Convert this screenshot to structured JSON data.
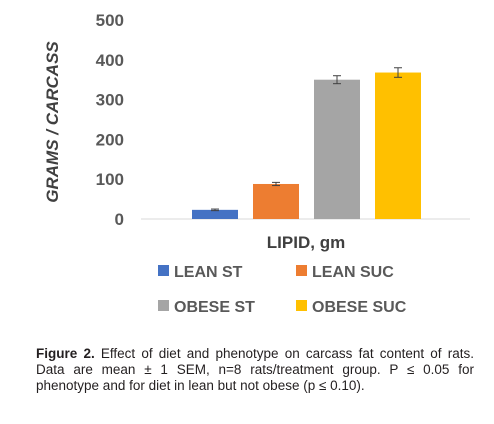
{
  "chart_data": {
    "type": "bar",
    "ylabel": "GRAMS / CARCASS",
    "xlabel": "LIPID, gm",
    "ylim": [
      0,
      500
    ],
    "yticks": [
      0,
      100,
      200,
      300,
      400,
      500
    ],
    "grid": false,
    "legend_placement": "bottom",
    "series": [
      {
        "name": "LEAN ST",
        "value": 23,
        "error": 2,
        "color": "#4472C4"
      },
      {
        "name": "LEAN SUC",
        "value": 88,
        "error": 4,
        "color": "#ED7D31"
      },
      {
        "name": "OBESE ST",
        "value": 350,
        "error": 10,
        "color": "#A5A5A5"
      },
      {
        "name": "OBESE SUC",
        "value": 368,
        "error": 12,
        "color": "#FFC000"
      }
    ]
  },
  "caption": {
    "label": "Figure 2.",
    "text": " Effect of diet and phenotype on carcass fat content of rats. Data are mean ± 1 SEM, n=8 rats/treatment group. P ≤ 0.05 for phenotype and for diet in lean but not obese (p ≤ 0.10)."
  }
}
